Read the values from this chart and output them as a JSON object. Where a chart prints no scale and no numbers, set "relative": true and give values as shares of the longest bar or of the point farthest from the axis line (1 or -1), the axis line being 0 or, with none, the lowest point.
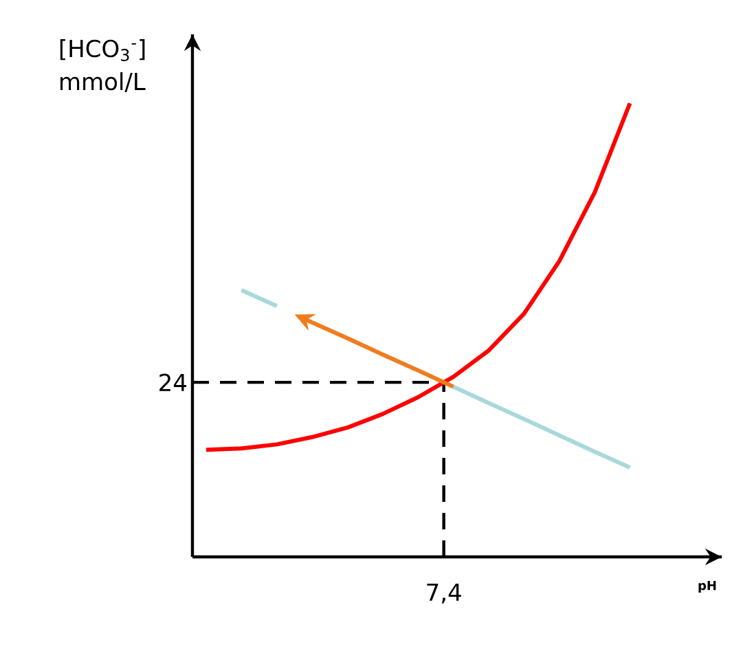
{
  "chart_data": {
    "type": "line",
    "relative": true,
    "ylabel": "[HCO$_{3}$$^{-}$] mmol/L",
    "xlabel": "pH",
    "marker": "none",
    "line_style": "solid",
    "categories": [
      null,
      null,
      null,
      null,
      null,
      null,
      null,
      null,
      null,
      null,
      null,
      null,
      null
    ],
    "series": [
      {
        "color": "#ff0000",
        "values": [
          0.236,
          0.239,
          0.248,
          0.264,
          0.285,
          0.315,
          0.352,
          0.397,
          0.455,
          0.536,
          0.652,
          0.803,
          1.0
        ]
      },
      {
        "color": "#a8d8dc",
        "values": [
          null,
          0.588,
          0.553,
          null,
          null,
          null,
          null,
          0.375,
          0.339,
          0.304,
          0.268,
          0.232,
          0.197
        ]
      },
      {
        "color": "#f07c1e",
        "values": [
          null,
          null,
          null,
          0.517,
          0.482,
          0.446,
          0.411,
          0.375,
          null,
          null,
          null,
          null,
          null
        ]
      }
    ],
    "annotations": [
      "24",
      "7,4"
    ]
  }
}
